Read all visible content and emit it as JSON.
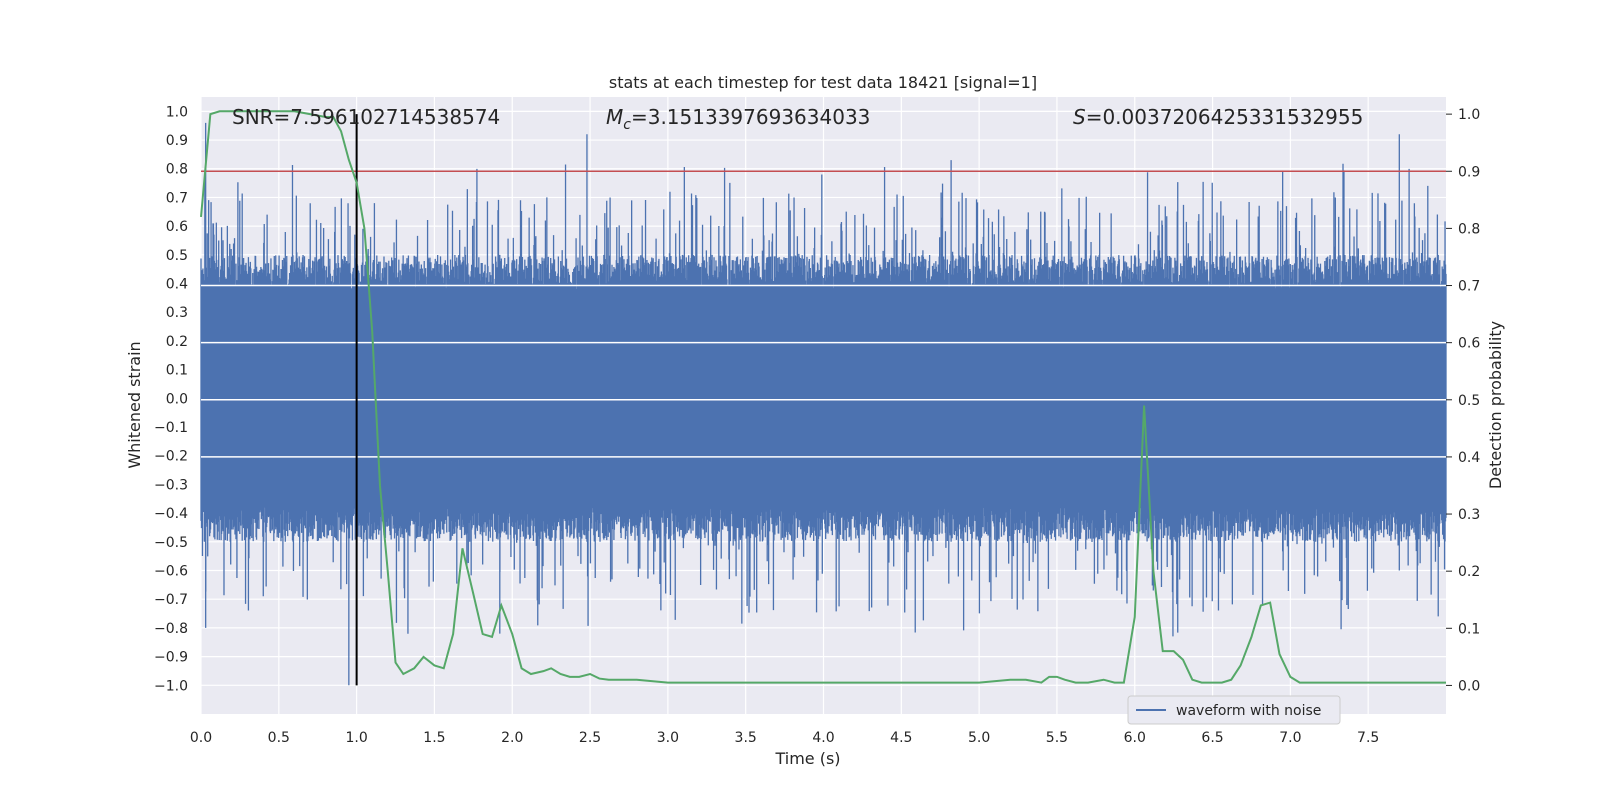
{
  "chart_data": {
    "type": "line",
    "title": "stats at each timestep for test data 18421 [signal=1]",
    "xlabel": "Time (s)",
    "ylabel_left": "Whitened strain",
    "ylabel_right": "Detection probability",
    "xlim": [
      0,
      8
    ],
    "ylim_left": [
      -1.1,
      1.05
    ],
    "ylim_right": [
      -0.05,
      1.03
    ],
    "x_ticks": [
      "0.0",
      "0.5",
      "1.0",
      "1.5",
      "2.0",
      "2.5",
      "3.0",
      "3.5",
      "4.0",
      "4.5",
      "5.0",
      "5.5",
      "6.0",
      "6.5",
      "7.0",
      "7.5"
    ],
    "y_ticks_left": [
      "1.0",
      "0.9",
      "0.8",
      "0.7",
      "0.6",
      "0.5",
      "0.4",
      "0.3",
      "0.2",
      "0.1",
      "0.0",
      "−0.1",
      "−0.2",
      "−0.3",
      "−0.4",
      "−0.5",
      "−0.6",
      "−0.7",
      "−0.8",
      "−0.9",
      "−1.0"
    ],
    "y_ticks_right": [
      "1.0",
      "0.9",
      "0.8",
      "0.7",
      "0.6",
      "0.5",
      "0.4",
      "0.3",
      "0.2",
      "0.1",
      "0.0"
    ],
    "annotations": {
      "snr": "SNR=7.596102714538574",
      "mc_symbol": "M",
      "mc_sub": "c",
      "mc_value": "=3.1513397693634033",
      "s_symbol": "S",
      "s_value": "=0.0037206425331532955"
    },
    "threshold_right": 0.9,
    "vertical_marker_x": 1.0,
    "series": [
      {
        "name": "waveform with noise",
        "axis": "left",
        "color": "#4c72b0",
        "note": "dense whitened strain trace, envelope approx ±0.4 with spikes to ±1.0"
      },
      {
        "name": "detection probability",
        "axis": "right",
        "color": "#55a868",
        "x": [
          0.0,
          0.06,
          0.12,
          0.2,
          0.3,
          0.4,
          0.5,
          0.6,
          0.7,
          0.8,
          0.85,
          0.9,
          0.95,
          1.0,
          1.05,
          1.1,
          1.15,
          1.2,
          1.25,
          1.3,
          1.37,
          1.43,
          1.5,
          1.56,
          1.62,
          1.68,
          1.75,
          1.81,
          1.87,
          1.93,
          2.0,
          2.06,
          2.12,
          2.2,
          2.25,
          2.31,
          2.37,
          2.43,
          2.5,
          2.56,
          2.62,
          2.7,
          2.8,
          3.0,
          3.2,
          3.4,
          3.6,
          3.8,
          4.0,
          4.2,
          4.4,
          4.6,
          4.8,
          5.0,
          5.2,
          5.3,
          5.4,
          5.45,
          5.5,
          5.55,
          5.62,
          5.7,
          5.8,
          5.87,
          5.93,
          6.0,
          6.06,
          6.12,
          6.18,
          6.25,
          6.31,
          6.37,
          6.43,
          6.5,
          6.56,
          6.62,
          6.68,
          6.75,
          6.81,
          6.87,
          6.93,
          7.0,
          7.06,
          7.12,
          7.2,
          7.4,
          7.6,
          7.8,
          8.0
        ],
        "values": [
          0.82,
          1.0,
          1.005,
          1.005,
          1.005,
          1.005,
          1.005,
          1.005,
          1.0,
          0.995,
          0.995,
          0.97,
          0.92,
          0.88,
          0.8,
          0.62,
          0.35,
          0.2,
          0.04,
          0.02,
          0.03,
          0.05,
          0.035,
          0.03,
          0.09,
          0.24,
          0.16,
          0.09,
          0.085,
          0.14,
          0.09,
          0.03,
          0.02,
          0.025,
          0.03,
          0.02,
          0.015,
          0.015,
          0.02,
          0.012,
          0.01,
          0.01,
          0.01,
          0.005,
          0.005,
          0.005,
          0.005,
          0.005,
          0.005,
          0.005,
          0.005,
          0.005,
          0.005,
          0.005,
          0.01,
          0.01,
          0.005,
          0.015,
          0.015,
          0.01,
          0.005,
          0.005,
          0.01,
          0.005,
          0.005,
          0.12,
          0.49,
          0.2,
          0.06,
          0.06,
          0.045,
          0.01,
          0.005,
          0.005,
          0.005,
          0.01,
          0.035,
          0.085,
          0.14,
          0.145,
          0.055,
          0.015,
          0.005,
          0.005,
          0.005,
          0.005,
          0.005,
          0.005,
          0.005
        ]
      }
    ],
    "legend": {
      "label": "waveform with noise",
      "placement": "lower-right"
    },
    "colors": {
      "background": "#eaeaf2",
      "grid": "#ffffff",
      "threshold": "#c44e52",
      "marker": "#000000"
    }
  }
}
